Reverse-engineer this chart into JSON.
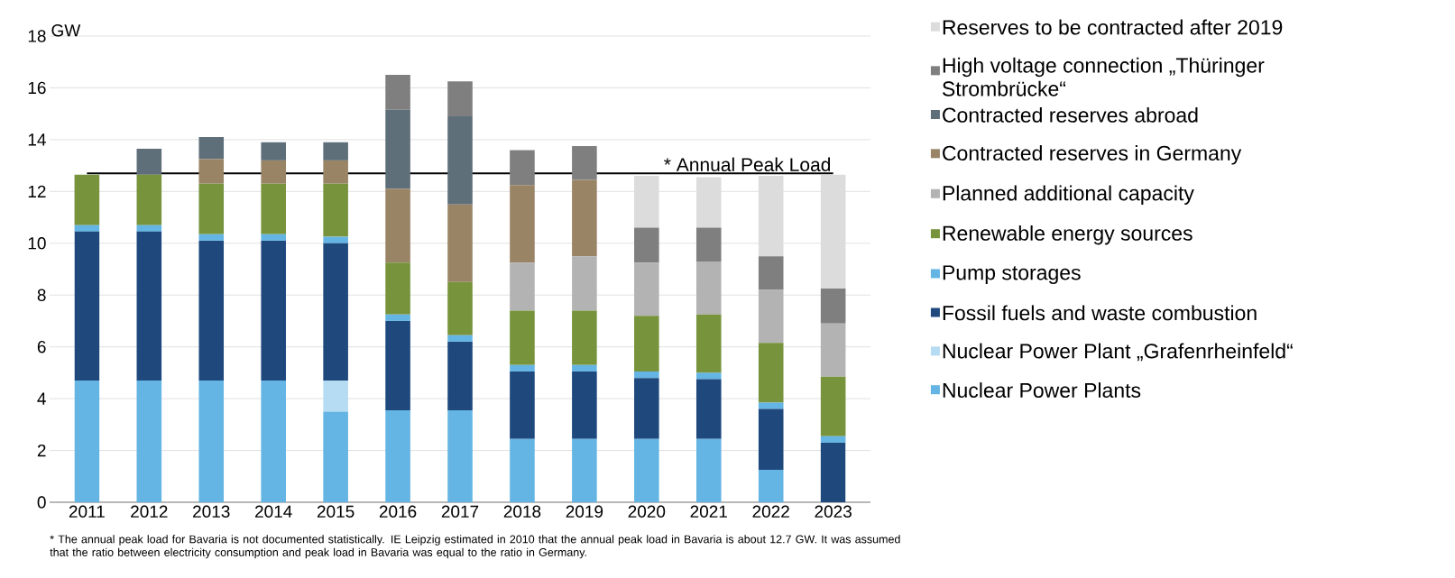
{
  "chart_data": {
    "type": "bar",
    "stacked": true,
    "ylabel": "GW",
    "categories": [
      "2011",
      "2012",
      "2013",
      "2014",
      "2015",
      "2016",
      "2017",
      "2018",
      "2019",
      "2020",
      "2021",
      "2022",
      "2023"
    ],
    "series": [
      {
        "name": "Nuclear Power Plants",
        "color": "#64b5e3",
        "values": [
          4.7,
          4.7,
          4.7,
          4.7,
          3.5,
          3.55,
          3.55,
          2.45,
          2.45,
          2.45,
          2.45,
          1.25,
          0
        ]
      },
      {
        "name": "Nuclear Power Plant „Grafenrheinfeld“",
        "color": "#b5dcf2",
        "values": [
          0,
          0,
          0,
          0,
          1.2,
          0,
          0,
          0,
          0,
          0,
          0,
          0,
          0
        ]
      },
      {
        "name": "Fossil fuels and waste combustion",
        "color": "#1f497d",
        "values": [
          5.75,
          5.75,
          5.4,
          5.4,
          5.3,
          3.45,
          2.65,
          2.6,
          2.6,
          2.35,
          2.3,
          2.35,
          2.3
        ]
      },
      {
        "name": "Pump storages",
        "color": "#64b5e3",
        "values": [
          0.25,
          0.25,
          0.25,
          0.25,
          0.25,
          0.25,
          0.25,
          0.25,
          0.25,
          0.25,
          0.25,
          0.25,
          0.25
        ]
      },
      {
        "name": "Renewable energy sources",
        "color": "#77933c",
        "values": [
          1.95,
          1.95,
          1.95,
          1.95,
          2.05,
          2.0,
          2.05,
          2.1,
          2.1,
          2.15,
          2.25,
          2.3,
          2.3
        ]
      },
      {
        "name": "Planned additional capacity",
        "color": "#b3b3b3",
        "values": [
          0,
          0,
          0,
          0,
          0,
          0,
          0,
          1.85,
          2.1,
          2.05,
          2.05,
          2.05,
          2.05
        ]
      },
      {
        "name": "Contracted reserves in Germany",
        "color": "#998466",
        "values": [
          0,
          0,
          0.95,
          0.9,
          0.9,
          2.85,
          3.0,
          3.0,
          2.95,
          0,
          0,
          0,
          0
        ]
      },
      {
        "name": "Contracted reserves abroad",
        "color": "#5f6f7a",
        "values": [
          0,
          1.0,
          0.85,
          0.7,
          0.7,
          3.05,
          3.4,
          0,
          0,
          0,
          0,
          0,
          0
        ]
      },
      {
        "name": "High voltage connection „Thüringer Strombrücke“",
        "color": "#7f7f7f",
        "values": [
          0,
          0,
          0,
          0,
          0,
          1.35,
          1.35,
          1.35,
          1.3,
          1.35,
          1.3,
          1.3,
          1.35
        ]
      },
      {
        "name": "Reserves to be contracted after 2019",
        "color": "#dcdcdc",
        "values": [
          0,
          0,
          0,
          0,
          0,
          0,
          0,
          0,
          0,
          2.0,
          1.95,
          3.1,
          4.4
        ]
      }
    ],
    "ylim": [
      0,
      18
    ],
    "yticks": [
      0,
      2,
      4,
      6,
      8,
      10,
      12,
      14,
      16,
      18
    ],
    "grid": "y",
    "legend": "right",
    "ref_lines": [
      {
        "axis": "y",
        "value": 12.7,
        "label": "* Annual Peak Load",
        "color": "#000000"
      }
    ],
    "annotations": [
      "* The annual peak load for Bavaria is not documented statistically. IE Leipzig estimated in 2010 that the annual peak load in Bavaria is about 12.7 GW. It was assumed that the ratio between electricity consumption and peak load in Bavaria was equal to the ratio in Germany."
    ]
  }
}
